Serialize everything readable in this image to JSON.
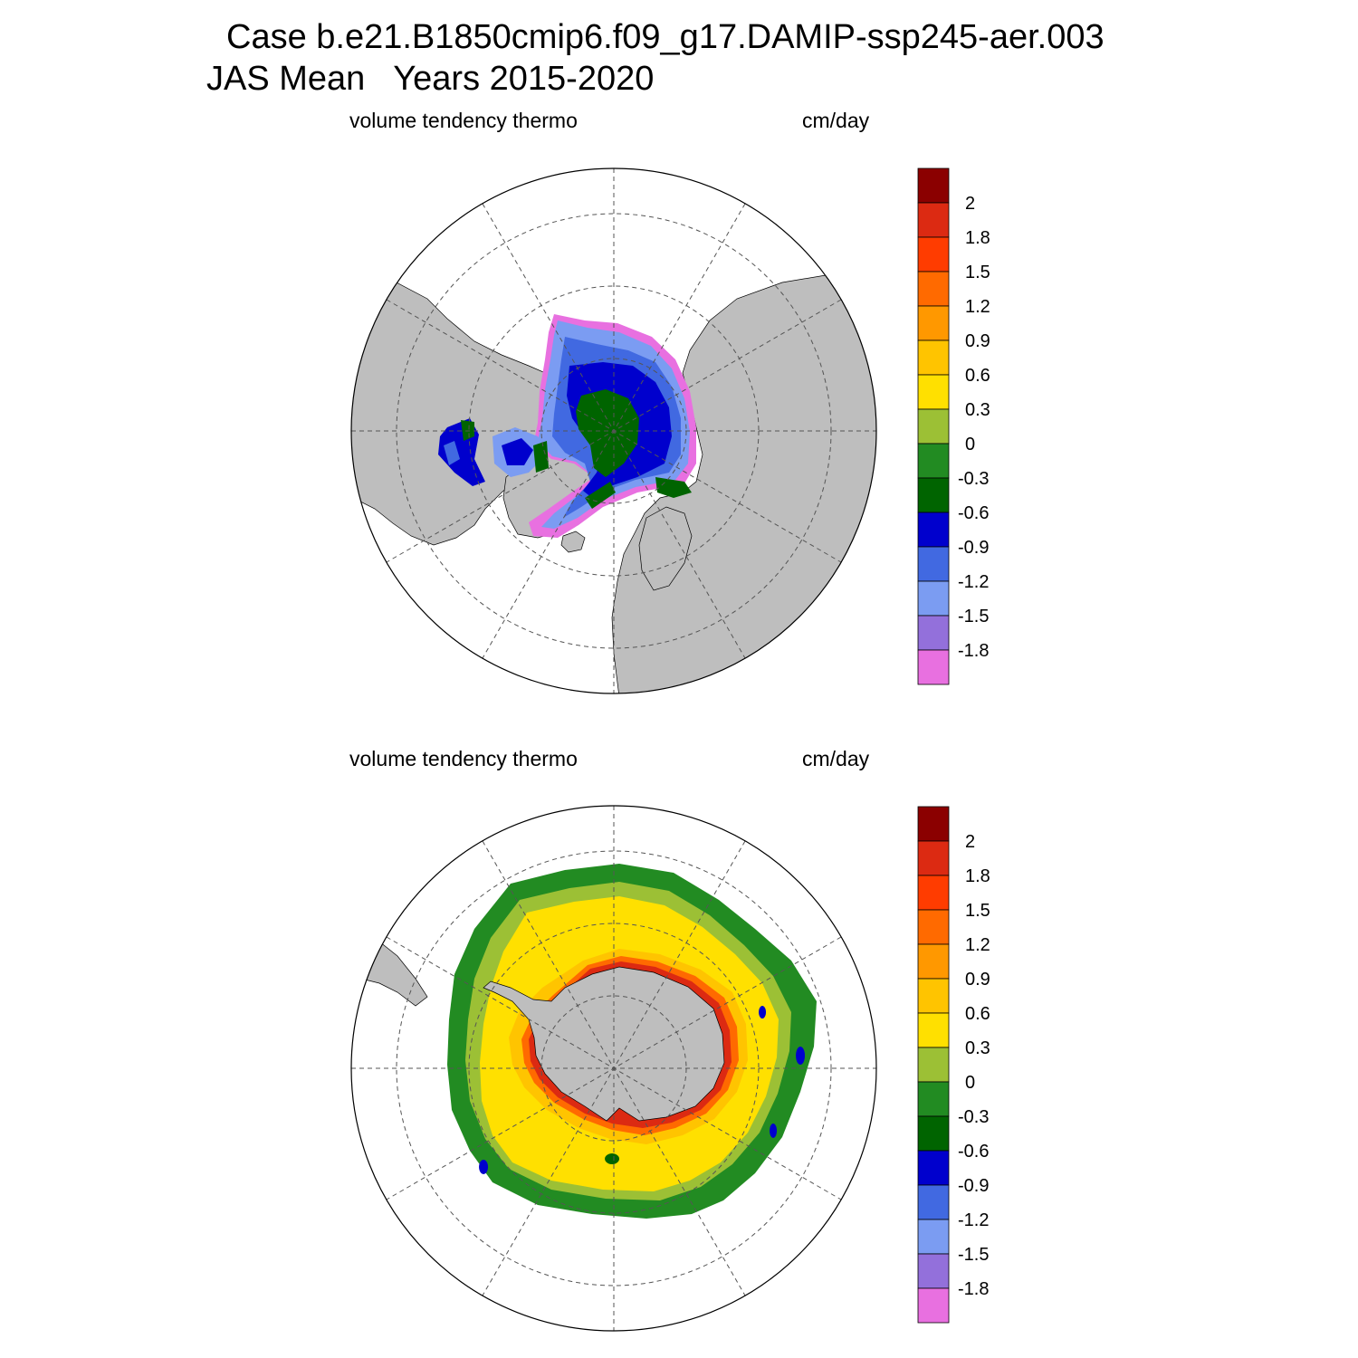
{
  "header": {
    "line1": "Case b.e21.B1850cmip6.f09_g17.DAMIP-ssp245-aer.003",
    "line2": "JAS Mean   Years 2015-2020"
  },
  "panels": [
    {
      "id": "north",
      "hemisphere": "Arctic",
      "variable_label": "volume tendency thermo",
      "units_label": "cm/day"
    },
    {
      "id": "south",
      "hemisphere": "Antarctic",
      "variable_label": "volume tendency thermo",
      "units_label": "cm/day"
    }
  ],
  "colors": {
    "land": "#bebebe",
    "ocean": "#ffffff",
    "grid": "#555555"
  },
  "colorbar": {
    "tick_labels": [
      "2",
      "1.8",
      "1.5",
      "1.2",
      "0.9",
      "0.6",
      "0.3",
      "0",
      "-0.3",
      "-0.6",
      "-0.9",
      "-1.2",
      "-1.5",
      "-1.8"
    ],
    "colors_top_to_bottom": [
      "#8b0000",
      "#dc2a12",
      "#ff3c00",
      "#ff6a00",
      "#ff9800",
      "#ffc400",
      "#ffe000",
      "#9cc035",
      "#228b22",
      "#006400",
      "#0000cd",
      "#4169e1",
      "#7b9cf2",
      "#9370db",
      "#e870e0"
    ]
  }
}
